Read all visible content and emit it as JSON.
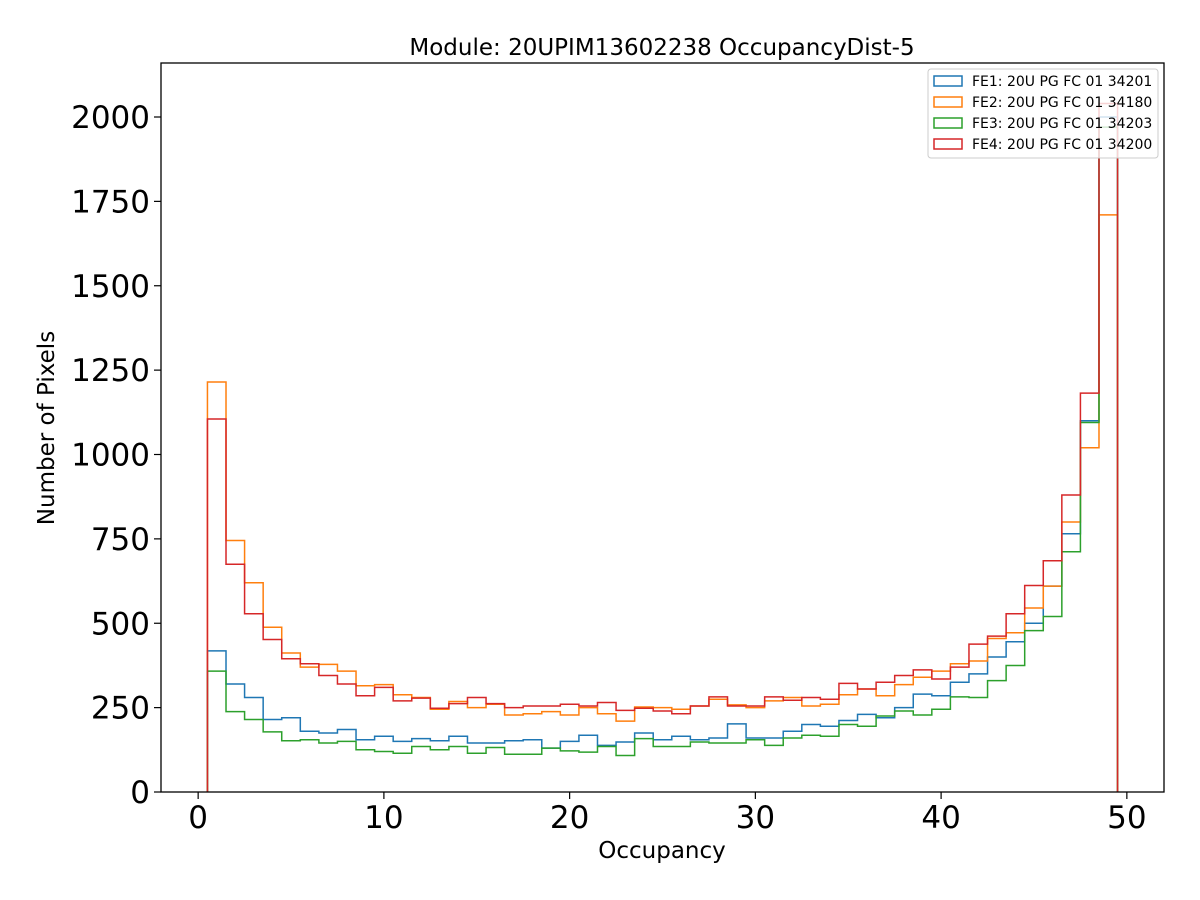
{
  "chart_data": {
    "type": "step-histogram",
    "title": "Module: 20UPIM13602238 OccupancyDist-5",
    "xlabel": "Occupancy",
    "ylabel": "Number of Pixels",
    "xlim": [
      -2,
      52
    ],
    "ylim": [
      0,
      2160
    ],
    "xticks": [
      0,
      10,
      20,
      30,
      40,
      50
    ],
    "yticks": [
      0,
      250,
      500,
      750,
      1000,
      1250,
      1500,
      1750,
      2000
    ],
    "grid": false,
    "legend_position": "top-right",
    "bin_edges": [
      0.5,
      1.5,
      2.5,
      3.5,
      4.5,
      5.5,
      6.5,
      7.5,
      8.5,
      9.5,
      10.5,
      11.5,
      12.5,
      13.5,
      14.5,
      15.5,
      16.5,
      17.5,
      18.5,
      19.5,
      20.5,
      21.5,
      22.5,
      23.5,
      24.5,
      25.5,
      26.5,
      27.5,
      28.5,
      29.5,
      30.5,
      31.5,
      32.5,
      33.5,
      34.5,
      35.5,
      36.5,
      37.5,
      38.5,
      39.5,
      40.5,
      41.5,
      42.5,
      43.5,
      44.5,
      45.5,
      46.5,
      47.5,
      48.5,
      49.5
    ],
    "series": [
      {
        "name": "FE1: 20U PG FC 01 34201",
        "color": "#1f77b4",
        "values": [
          418,
          320,
          280,
          215,
          220,
          180,
          175,
          185,
          155,
          165,
          150,
          158,
          152,
          165,
          145,
          145,
          152,
          155,
          130,
          150,
          168,
          138,
          148,
          175,
          155,
          165,
          155,
          160,
          202,
          160,
          160,
          180,
          200,
          195,
          212,
          230,
          220,
          250,
          290,
          285,
          325,
          350,
          400,
          445,
          500,
          610,
          765,
          1100,
          2000
        ]
      },
      {
        "name": "FE2: 20U PG FC 01 34180",
        "color": "#ff7f0e",
        "values": [
          1215,
          745,
          620,
          488,
          412,
          370,
          378,
          358,
          315,
          318,
          288,
          280,
          245,
          268,
          250,
          260,
          228,
          232,
          238,
          228,
          250,
          232,
          210,
          252,
          250,
          245,
          255,
          275,
          258,
          250,
          270,
          280,
          255,
          260,
          288,
          305,
          285,
          318,
          340,
          358,
          380,
          388,
          455,
          472,
          545,
          610,
          800,
          1020,
          1710
        ]
      },
      {
        "name": "FE3: 20U PG FC 01 34203",
        "color": "#2ca02c",
        "values": [
          358,
          238,
          215,
          178,
          152,
          155,
          145,
          150,
          125,
          120,
          115,
          135,
          125,
          135,
          115,
          132,
          112,
          112,
          130,
          122,
          118,
          135,
          108,
          158,
          135,
          135,
          148,
          145,
          145,
          155,
          138,
          160,
          168,
          165,
          200,
          195,
          225,
          240,
          228,
          245,
          282,
          280,
          330,
          375,
          478,
          520,
          712,
          1095,
          1970
        ]
      },
      {
        "name": "FE4: 20U PG FC 01 34200",
        "color": "#d62728",
        "values": [
          1105,
          675,
          528,
          452,
          395,
          380,
          345,
          320,
          285,
          310,
          270,
          278,
          248,
          262,
          280,
          262,
          250,
          255,
          255,
          260,
          255,
          265,
          242,
          248,
          240,
          232,
          255,
          282,
          255,
          255,
          282,
          272,
          280,
          275,
          322,
          305,
          325,
          345,
          362,
          335,
          370,
          438,
          462,
          528,
          612,
          685,
          880,
          1182,
          2040
        ]
      }
    ]
  }
}
